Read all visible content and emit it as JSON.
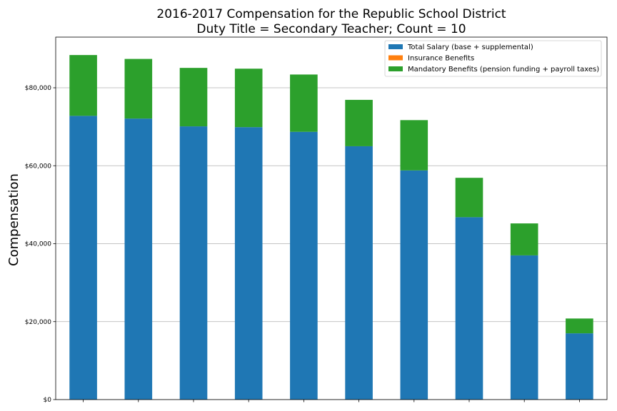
{
  "chart_data": {
    "type": "bar",
    "stacked": true,
    "title": "2016-2017 Compensation for the Republic School District",
    "subtitle": "Duty Title = Secondary Teacher; Count = 10",
    "xlabel": "",
    "ylabel": "Compensation",
    "ylim": [
      0,
      93000
    ],
    "yticks": [
      0,
      20000,
      40000,
      60000,
      80000
    ],
    "ytick_labels": [
      "$0",
      "$20,000",
      "$40,000",
      "$60,000",
      "$80,000"
    ],
    "grid": "horizontal",
    "legend_position": "top-right",
    "categories": [
      "",
      "",
      "",
      "",
      "",
      "",
      "",
      "",
      "",
      ""
    ],
    "series": [
      {
        "name": "Total Salary (base + supplemental)",
        "color": "#1f77b4",
        "values": [
          72800,
          72100,
          70100,
          69900,
          68700,
          65000,
          58800,
          46800,
          37000,
          17000
        ]
      },
      {
        "name": "Insurance Benefits",
        "color": "#ff7f0e",
        "values": [
          0,
          0,
          0,
          0,
          0,
          0,
          0,
          0,
          0,
          0
        ]
      },
      {
        "name": "Mandatory Benefits (pension funding + payroll taxes)",
        "color": "#2ca02c",
        "values": [
          15600,
          15300,
          15000,
          15000,
          14700,
          11900,
          12900,
          10100,
          8200,
          3800
        ]
      }
    ]
  }
}
